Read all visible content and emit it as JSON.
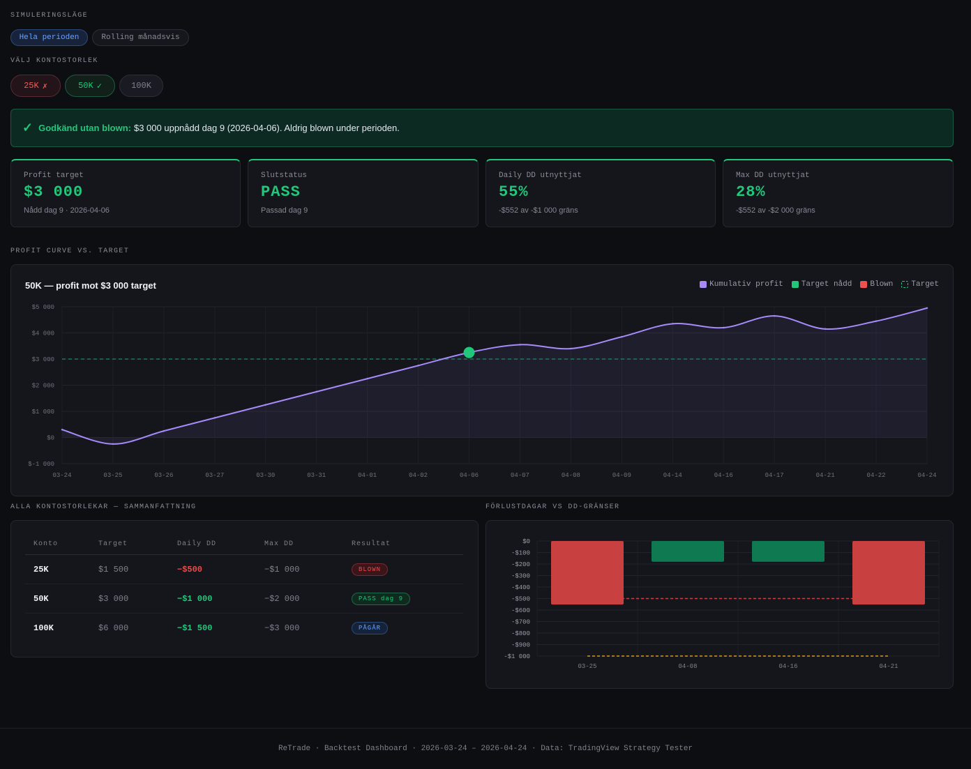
{
  "sim_mode": {
    "label": "SIMULERINGSLÄGE",
    "options": [
      "Hela perioden",
      "Rolling månadsvis"
    ],
    "selected": "Hela perioden"
  },
  "account_size": {
    "label": "VÄLJ KONTOSTORLEK",
    "options": [
      {
        "name": "25K",
        "mark": "✗",
        "state": "fail"
      },
      {
        "name": "50K",
        "mark": "✓",
        "state": "pass"
      },
      {
        "name": "100K",
        "mark": "",
        "state": "idle"
      }
    ]
  },
  "banner": {
    "icon": "check-icon",
    "check": "✓",
    "strong": "Godkänd utan blown:",
    "text": "$3 000 uppnådd dag 9 (2026-04-06). Aldrig blown under perioden."
  },
  "cards": [
    {
      "label": "Profit target",
      "value": "$3 000",
      "sub": "Nådd dag 9 · 2026-04-06"
    },
    {
      "label": "Slutstatus",
      "value": "PASS",
      "sub": "Passad dag 9"
    },
    {
      "label": "Daily DD utnyttjat",
      "value": "55%",
      "sub": "-$552 av -$1 000 gräns"
    },
    {
      "label": "Max DD utnyttjat",
      "value": "28%",
      "sub": "-$552 av -$2 000 gräns"
    }
  ],
  "profit_section_label": "PROFIT CURVE VS. TARGET",
  "summary_section_label": "ALLA KONTOSTORLEKAR — SAMMANFATTNING",
  "loss_section_label": "FÖRLUSTDAGAR VS DD-GRÄNSER",
  "colors": {
    "accent_green": "#21c77a",
    "red": "#ef4a4a",
    "purple": "#a78bfa",
    "blue": "#6ea2ff",
    "amber": "#d69a1f"
  },
  "chart_data": [
    {
      "type": "line",
      "title": "50K — profit mot $3 000 target",
      "legend": [
        {
          "label": "Kumulativ profit",
          "color": "#a78bfa",
          "style": "solid"
        },
        {
          "label": "Target nådd",
          "color": "#21c77a",
          "style": "solid"
        },
        {
          "label": "Blown",
          "color": "#ef5050",
          "style": "solid"
        },
        {
          "label": "Target",
          "color": "#21c77a",
          "style": "dashed"
        }
      ],
      "legend_position": "top-right",
      "categories": [
        "03-24",
        "03-25",
        "03-26",
        "03-27",
        "03-30",
        "03-31",
        "04-01",
        "04-02",
        "04-06",
        "04-07",
        "04-08",
        "04-09",
        "04-14",
        "04-16",
        "04-17",
        "04-21",
        "04-22",
        "04-24"
      ],
      "series": [
        {
          "name": "Kumulativ profit",
          "values": [
            300,
            -250,
            250,
            750,
            1250,
            1750,
            2250,
            2750,
            3250,
            3550,
            3400,
            3850,
            4350,
            4200,
            4650,
            4150,
            4450,
            4950
          ]
        }
      ],
      "target": 3000,
      "target_reached_index": 8,
      "ylim": [
        -1000,
        5000
      ],
      "yticks": [
        5000,
        4000,
        3000,
        2000,
        1000,
        0,
        -1000
      ],
      "ytick_labels": [
        "$5 000",
        "$4 000",
        "$3 000",
        "$2 000",
        "$1 000",
        "$0",
        "$-1 000"
      ],
      "grid": true
    },
    {
      "type": "bar",
      "categories": [
        "03-25",
        "04-08",
        "04-16",
        "04-21"
      ],
      "values": [
        -552,
        -180,
        -180,
        -552
      ],
      "bar_colors": [
        "#c84040",
        "#0f7a52",
        "#0f7a52",
        "#c84040"
      ],
      "limits": [
        {
          "value": -500,
          "color": "#c84040"
        },
        {
          "value": -1000,
          "color": "#d69a1f"
        }
      ],
      "ylim": [
        -1000,
        0
      ],
      "yticks": [
        0,
        -100,
        -200,
        -300,
        -400,
        -500,
        -600,
        -700,
        -800,
        -900,
        -1000
      ],
      "ytick_labels": [
        "$0",
        "-$100",
        "-$200",
        "-$300",
        "-$400",
        "-$500",
        "-$600",
        "-$700",
        "-$800",
        "-$900",
        "-$1 000"
      ],
      "grid": true
    }
  ],
  "table": {
    "headers": [
      "Konto",
      "Target",
      "Daily DD",
      "Max DD",
      "Resultat"
    ],
    "rows": [
      {
        "konto": "25K",
        "target": "$1 500",
        "daily": "−$500",
        "daily_class": "red",
        "max": "−$1 000",
        "result": "BLOWN",
        "result_class": "blown"
      },
      {
        "konto": "50K",
        "target": "$3 000",
        "daily": "−$1 000",
        "daily_class": "green",
        "max": "−$2 000",
        "result": "PASS dag 9",
        "result_class": "pass"
      },
      {
        "konto": "100K",
        "target": "$6 000",
        "daily": "−$1 500",
        "daily_class": "green",
        "max": "−$3 000",
        "result": "PÅGÅR",
        "result_class": "running"
      }
    ]
  },
  "footer": "ReTrade · Backtest Dashboard · 2026-03-24 – 2026-04-24 · Data: TradingView Strategy Tester"
}
